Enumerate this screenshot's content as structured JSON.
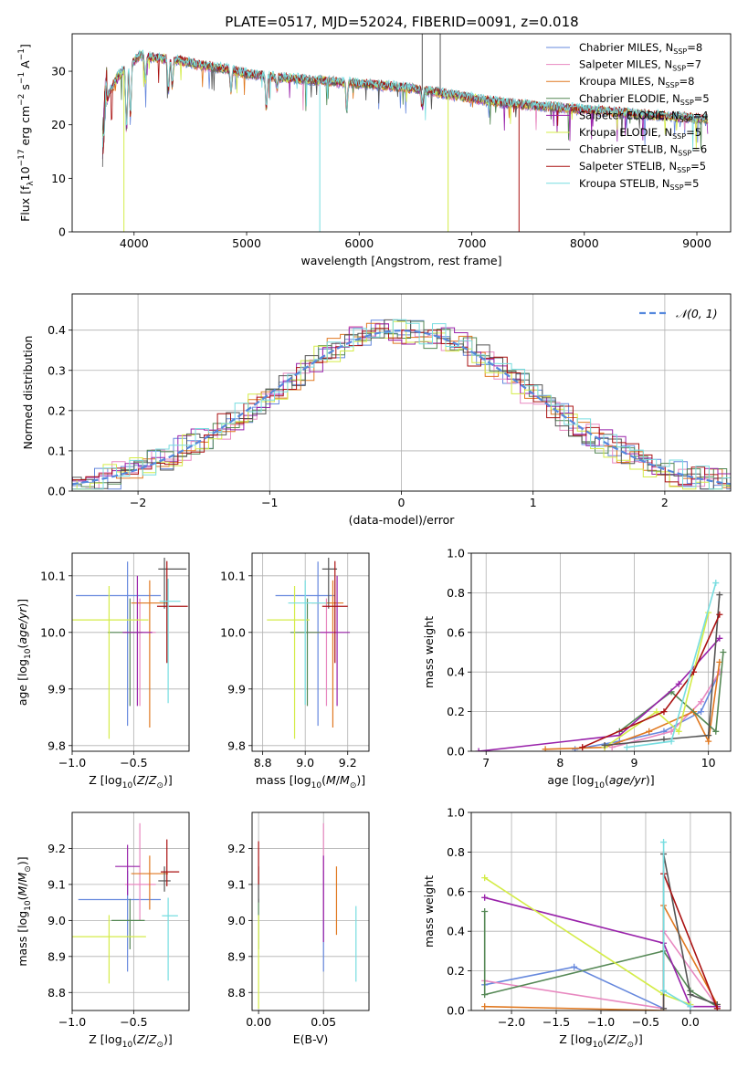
{
  "figure_title": "PLATE=0517, MJD=52024, FIBERID=0091, z=0.018",
  "colors": {
    "chabrier_miles": "#6688dd",
    "salpeter_miles": "#e888c0",
    "kroupa_miles": "#e07820",
    "chabrier_elodie": "#558855",
    "salpeter_elodie": "#9922aa",
    "kroupa_elodie": "#d4ec48",
    "chabrier_stelib": "#555555",
    "salpeter_stelib": "#aa1111",
    "kroupa_stelib": "#77dde0",
    "grid": "#b0b0b0",
    "normal_curve": "#5588dd"
  },
  "series_labels": [
    "Chabrier MILES, N",
    "Salpeter MILES, N",
    "Kroupa MILES, N",
    "Chabrier ELODIE, N",
    "Salpeter ELODIE, N",
    "Kroupa ELODIE, N",
    "Chabrier STELIB, N",
    "Salpeter STELIB, N",
    "Kroupa STELIB, N"
  ],
  "series_subscript": "SSP",
  "series_nssp": [
    8,
    7,
    8,
    5,
    4,
    5,
    6,
    5,
    5
  ],
  "chart_data": [
    {
      "type": "line",
      "panel": "spectrum",
      "xlabel": "wavelength [Angstrom, rest frame]",
      "ylabel": "Flux [f",
      "ylabel_full": "Flux [fλ10⁻¹⁷ erg cm⁻² s⁻¹ A⁻¹]",
      "xlim": [
        3450,
        9300
      ],
      "ylim": [
        0,
        37
      ],
      "xticks": [
        4000,
        5000,
        6000,
        7000,
        8000,
        9000
      ],
      "yticks": [
        0,
        10,
        20,
        30
      ],
      "legend": "top-right",
      "continuum": {
        "x": [
          3720,
          3780,
          3850,
          3950,
          4050,
          4200,
          4400,
          4600,
          4800,
          5000,
          5200,
          5500,
          5800,
          6100,
          6400,
          6700,
          7000,
          7300,
          7600,
          7900,
          8200,
          8500,
          8800,
          9100
        ],
        "y": [
          22,
          26,
          29,
          31,
          33,
          32.5,
          32,
          31,
          30.5,
          29.5,
          29,
          28.5,
          28,
          27.5,
          27,
          26,
          25,
          24,
          23.5,
          23,
          22.5,
          22,
          21.5,
          21
        ]
      },
      "absorption_lines": [
        {
          "x": 3933,
          "depth": 12
        },
        {
          "x": 3968,
          "depth": 10
        },
        {
          "x": 4101,
          "depth": 5
        },
        {
          "x": 4305,
          "depth": 6
        },
        {
          "x": 4340,
          "depth": 5
        },
        {
          "x": 4861,
          "depth": 4
        },
        {
          "x": 5175,
          "depth": 6
        },
        {
          "x": 5270,
          "depth": 2
        },
        {
          "x": 5890,
          "depth": 5
        },
        {
          "x": 6563,
          "depth": 3
        }
      ],
      "spikes": [
        {
          "x": 3910,
          "y": 0,
          "series": "kroupa_elodie"
        },
        {
          "x": 5650,
          "y": 0,
          "series": "kroupa_stelib"
        },
        {
          "x": 6790,
          "y": 0,
          "series": "kroupa_elodie"
        },
        {
          "x": 7420,
          "y": 0,
          "series": "salpeter_stelib"
        },
        {
          "x": 6560,
          "y": 37,
          "series": "chabrier_stelib"
        },
        {
          "x": 6720,
          "y": 37,
          "series": "chabrier_stelib"
        }
      ]
    },
    {
      "type": "histogram",
      "panel": "residuals",
      "xlabel": "(data-model)/error",
      "ylabel": "Normed distribution",
      "xlim": [
        -2.5,
        2.5
      ],
      "ylim": [
        0,
        0.49
      ],
      "xticks": [
        -2,
        -1,
        0,
        1,
        2
      ],
      "yticks": [
        0.0,
        0.1,
        0.2,
        0.3,
        0.4
      ],
      "bin_width": 0.1,
      "legend": "top-right",
      "normal_label": "𝒩(0, 1)",
      "normal_mean": 0,
      "normal_sigma": 1,
      "grid": true
    },
    {
      "type": "scatter",
      "panel": "age_vs_Z",
      "xlabel": "Z [log",
      "ylabel": "age  [log",
      "xlim": [
        -1.0,
        -0.05
      ],
      "ylim": [
        9.79,
        10.14
      ],
      "xticks": [
        -1.0,
        -0.5
      ],
      "yticks": [
        9.8,
        9.9,
        10.0,
        10.1
      ],
      "grid": true,
      "points": [
        {
          "series": "chabrier_miles",
          "x": -0.55,
          "y": 10.065,
          "xerr": [
            0.42,
            0.27
          ],
          "yerr": [
            0.23,
            0.06
          ]
        },
        {
          "series": "salpeter_miles",
          "x": -0.45,
          "y": 10.0,
          "xerr": [
            0.12,
            0.13
          ],
          "yerr": [
            0.13,
            0.06
          ]
        },
        {
          "series": "kroupa_miles",
          "x": -0.37,
          "y": 10.052,
          "xerr": [
            0.15,
            0.15
          ],
          "yerr": [
            0.22,
            0.04
          ]
        },
        {
          "series": "chabrier_elodie",
          "x": -0.53,
          "y": 10.0,
          "xerr": [
            0.18,
            0.1
          ],
          "yerr": [
            0.13,
            0.06
          ]
        },
        {
          "series": "salpeter_elodie",
          "x": -0.47,
          "y": 10.0,
          "xerr": [
            0.12,
            0.12
          ],
          "yerr": [
            0.13,
            0.1
          ]
        },
        {
          "series": "kroupa_elodie",
          "x": -0.7,
          "y": 10.022,
          "xerr": [
            0.3,
            0.32
          ],
          "yerr": [
            0.21,
            0.06
          ]
        },
        {
          "series": "chabrier_stelib",
          "x": -0.25,
          "y": 10.112,
          "xerr": [
            0.05,
            0.18
          ],
          "yerr": [
            0.07,
            0.02
          ]
        },
        {
          "series": "salpeter_stelib",
          "x": -0.23,
          "y": 10.046,
          "xerr": [
            0.08,
            0.17
          ],
          "yerr": [
            0.1,
            0.08
          ]
        },
        {
          "series": "kroupa_stelib",
          "x": -0.22,
          "y": 10.055,
          "xerr": [
            0.07,
            0.1
          ],
          "yerr": [
            0.18,
            0.04
          ]
        }
      ]
    },
    {
      "type": "scatter",
      "panel": "age_vs_mass",
      "xlabel": "mass [log",
      "xlim": [
        8.75,
        9.3
      ],
      "ylim": [
        9.79,
        10.14
      ],
      "xticks": [
        8.8,
        9.0,
        9.2
      ],
      "yticks": [
        9.8,
        9.9,
        10.0,
        10.1
      ],
      "grid": true,
      "points": [
        {
          "series": "chabrier_miles",
          "x": 9.06,
          "y": 10.065,
          "xerr": [
            0.2,
            0.08
          ],
          "yerr": [
            0.23,
            0.06
          ]
        },
        {
          "series": "salpeter_miles",
          "x": 9.1,
          "y": 10.0,
          "xerr": [
            0.1,
            0.05
          ],
          "yerr": [
            0.13,
            0.06
          ]
        },
        {
          "series": "kroupa_miles",
          "x": 9.13,
          "y": 10.052,
          "xerr": [
            0.1,
            0.05
          ],
          "yerr": [
            0.22,
            0.04
          ]
        },
        {
          "series": "chabrier_elodie",
          "x": 9.01,
          "y": 10.0,
          "xerr": [
            0.08,
            0.06
          ],
          "yerr": [
            0.13,
            0.06
          ]
        },
        {
          "series": "salpeter_elodie",
          "x": 9.15,
          "y": 10.0,
          "xerr": [
            0.08,
            0.06
          ],
          "yerr": [
            0.13,
            0.1
          ]
        },
        {
          "series": "kroupa_elodie",
          "x": 8.95,
          "y": 10.022,
          "xerr": [
            0.13,
            0.07
          ],
          "yerr": [
            0.21,
            0.06
          ]
        },
        {
          "series": "chabrier_stelib",
          "x": 9.11,
          "y": 10.112,
          "xerr": [
            0.03,
            0.04
          ],
          "yerr": [
            0.07,
            0.02
          ]
        },
        {
          "series": "salpeter_stelib",
          "x": 9.14,
          "y": 10.046,
          "xerr": [
            0.06,
            0.06
          ],
          "yerr": [
            0.1,
            0.08
          ]
        },
        {
          "series": "kroupa_stelib",
          "x": 9.0,
          "y": 10.052,
          "xerr": [
            0.08,
            0.1
          ],
          "yerr": [
            0.18,
            0.04
          ]
        }
      ]
    },
    {
      "type": "line",
      "panel": "mass_weight_vs_age",
      "xlabel": "age  [log",
      "ylabel": "mass weight",
      "xlim": [
        6.8,
        10.3
      ],
      "ylim": [
        0.0,
        1.0
      ],
      "xticks": [
        7,
        8,
        9,
        10
      ],
      "yticks": [
        0.0,
        0.2,
        0.4,
        0.6,
        0.8,
        1.0
      ],
      "grid": true,
      "series": [
        {
          "series": "chabrier_miles",
          "x": [
            8.2,
            8.8,
            9.4,
            9.9,
            10.15
          ],
          "y": [
            0.01,
            0.05,
            0.1,
            0.2,
            0.4
          ]
        },
        {
          "series": "salpeter_miles",
          "x": [
            8.7,
            9.5,
            9.9,
            10.15
          ],
          "y": [
            0.02,
            0.1,
            0.25,
            0.4
          ]
        },
        {
          "series": "kroupa_miles",
          "x": [
            7.8,
            8.6,
            9.2,
            9.8,
            10.0,
            10.15
          ],
          "y": [
            0.01,
            0.02,
            0.1,
            0.2,
            0.05,
            0.45
          ]
        },
        {
          "series": "chabrier_elodie",
          "x": [
            8.8,
            9.5,
            10.1,
            10.2
          ],
          "y": [
            0.1,
            0.3,
            0.1,
            0.5
          ]
        },
        {
          "series": "salpeter_elodie",
          "x": [
            6.9,
            8.8,
            9.6,
            10.15
          ],
          "y": [
            0.0,
            0.08,
            0.34,
            0.57
          ]
        },
        {
          "series": "kroupa_elodie",
          "x": [
            8.6,
            9.3,
            9.6,
            10.0
          ],
          "y": [
            0.02,
            0.2,
            0.1,
            0.7
          ]
        },
        {
          "series": "chabrier_stelib",
          "x": [
            8.6,
            9.4,
            10.0,
            10.15
          ],
          "y": [
            0.03,
            0.06,
            0.08,
            0.79
          ]
        },
        {
          "series": "salpeter_stelib",
          "x": [
            8.3,
            9.4,
            9.8,
            10.15
          ],
          "y": [
            0.02,
            0.2,
            0.4,
            0.69
          ]
        },
        {
          "series": "kroupa_stelib",
          "x": [
            8.9,
            9.5,
            10.1
          ],
          "y": [
            0.02,
            0.05,
            0.85
          ]
        }
      ]
    },
    {
      "type": "scatter",
      "panel": "mass_vs_Z",
      "xlabel": "Z [log",
      "ylabel": "mass [log",
      "xlim": [
        -1.0,
        -0.05
      ],
      "ylim": [
        8.75,
        9.3
      ],
      "xticks": [
        -1.0,
        -0.5
      ],
      "yticks": [
        8.8,
        8.9,
        9.0,
        9.1,
        9.2
      ],
      "grid": true,
      "points": [
        {
          "series": "chabrier_miles",
          "x": -0.55,
          "y": 9.058,
          "xerr": [
            0.4,
            0.27
          ],
          "yerr": [
            0.2,
            0.08
          ]
        },
        {
          "series": "salpeter_miles",
          "x": -0.45,
          "y": 9.1,
          "xerr": [
            0.12,
            0.13
          ],
          "yerr": [
            0.1,
            0.17
          ]
        },
        {
          "series": "kroupa_miles",
          "x": -0.37,
          "y": 9.13,
          "xerr": [
            0.15,
            0.15
          ],
          "yerr": [
            0.1,
            0.05
          ]
        },
        {
          "series": "chabrier_elodie",
          "x": -0.53,
          "y": 9.0,
          "xerr": [
            0.15,
            0.12
          ],
          "yerr": [
            0.08,
            0.06
          ]
        },
        {
          "series": "salpeter_elodie",
          "x": -0.55,
          "y": 9.15,
          "xerr": [
            0.1,
            0.1
          ],
          "yerr": [
            0.08,
            0.06
          ]
        },
        {
          "series": "kroupa_elodie",
          "x": -0.7,
          "y": 8.955,
          "xerr": [
            0.3,
            0.3
          ],
          "yerr": [
            0.13,
            0.06
          ]
        },
        {
          "series": "chabrier_stelib",
          "x": -0.25,
          "y": 9.11,
          "xerr": [
            0.05,
            0.05
          ],
          "yerr": [
            0.03,
            0.04
          ]
        },
        {
          "series": "salpeter_stelib",
          "x": -0.23,
          "y": 9.135,
          "xerr": [
            0.05,
            0.1
          ],
          "yerr": [
            0.04,
            0.09
          ]
        },
        {
          "series": "kroupa_stelib",
          "x": -0.22,
          "y": 9.013,
          "xerr": [
            0.05,
            0.08
          ],
          "yerr": [
            0.18,
            0.05
          ]
        }
      ]
    },
    {
      "type": "scatter",
      "panel": "mass_vs_ebv",
      "xlabel": "E(B-V)",
      "xlim": [
        -0.005,
        0.085
      ],
      "ylim": [
        8.75,
        9.3
      ],
      "xticks": [
        0.0,
        0.05
      ],
      "xtick_labels": [
        "0.00",
        "0.05"
      ],
      "yticks": [
        8.8,
        8.9,
        9.0,
        9.1,
        9.2
      ],
      "grid": true,
      "points": [
        {
          "series": "chabrier_miles",
          "x": 0.05,
          "y": 9.058,
          "xerr": [
            0,
            0
          ],
          "yerr": [
            0.2,
            0.08
          ]
        },
        {
          "series": "salpeter_miles",
          "x": 0.05,
          "y": 9.1,
          "xerr": [
            0,
            0
          ],
          "yerr": [
            0.1,
            0.17
          ]
        },
        {
          "series": "kroupa_miles",
          "x": 0.06,
          "y": 9.06,
          "xerr": [
            0,
            0
          ],
          "yerr": [
            0.1,
            0.09
          ]
        },
        {
          "series": "chabrier_elodie",
          "x": 0.0,
          "y": 9.0,
          "xerr": [
            0,
            0
          ],
          "yerr": [
            0.08,
            0.06
          ]
        },
        {
          "series": "salpeter_elodie",
          "x": 0.05,
          "y": 9.08,
          "xerr": [
            0,
            0
          ],
          "yerr": [
            0.14,
            0.1
          ]
        },
        {
          "series": "kroupa_elodie",
          "x": 0.0,
          "y": 8.955,
          "xerr": [
            0,
            0
          ],
          "yerr": [
            0.2,
            0.06
          ]
        },
        {
          "series": "chabrier_stelib",
          "x": 0.0,
          "y": 9.11,
          "xerr": [
            0,
            0
          ],
          "yerr": [
            0.06,
            0.04
          ]
        },
        {
          "series": "salpeter_stelib",
          "x": 0.0,
          "y": 9.15,
          "xerr": [
            0,
            0
          ],
          "yerr": [
            0.05,
            0.07
          ]
        },
        {
          "series": "kroupa_stelib",
          "x": 0.075,
          "y": 8.93,
          "xerr": [
            0,
            0
          ],
          "yerr": [
            0.1,
            0.11
          ]
        }
      ]
    },
    {
      "type": "line",
      "panel": "mass_weight_vs_Z",
      "xlabel": "Z [log",
      "ylabel": "mass weight",
      "xlim": [
        -2.45,
        0.45
      ],
      "ylim": [
        0.0,
        1.0
      ],
      "xticks": [
        -2.0,
        -1.5,
        -1.0,
        -0.5,
        0.0
      ],
      "xtick_labels": [
        "−2.0",
        "−1.5",
        "−1.0",
        "−0.5",
        "0.0"
      ],
      "yticks": [
        0.0,
        0.2,
        0.4,
        0.6,
        0.8,
        1.0
      ],
      "grid": true,
      "series": [
        {
          "series": "chabrier_miles",
          "x": [
            -2.3,
            -1.3,
            -0.3,
            -0.3
          ],
          "y": [
            0.13,
            0.22,
            0.01,
            0.4
          ]
        },
        {
          "series": "salpeter_miles",
          "x": [
            -2.3,
            -0.3,
            -0.3,
            0.3
          ],
          "y": [
            0.15,
            0.01,
            0.4,
            0.02
          ]
        },
        {
          "series": "kroupa_miles",
          "x": [
            -2.3,
            -0.3,
            -0.3,
            0.3
          ],
          "y": [
            0.02,
            0.0,
            0.53,
            0.03
          ]
        },
        {
          "series": "chabrier_elodie",
          "x": [
            -2.3,
            -2.3,
            -0.3,
            0.0,
            0.3
          ],
          "y": [
            0.5,
            0.08,
            0.3,
            0.1,
            0.02
          ]
        },
        {
          "series": "salpeter_elodie",
          "x": [
            -2.3,
            -0.3,
            0.0,
            0.3
          ],
          "y": [
            0.57,
            0.34,
            0.02,
            0.02
          ]
        },
        {
          "series": "kroupa_elodie",
          "x": [
            -2.3,
            -0.3,
            0.0
          ],
          "y": [
            0.67,
            0.08,
            0.03
          ]
        },
        {
          "series": "chabrier_stelib",
          "x": [
            -0.3,
            -0.3,
            0.0,
            0.3
          ],
          "y": [
            0.01,
            0.79,
            0.08,
            0.03
          ]
        },
        {
          "series": "salpeter_stelib",
          "x": [
            -0.3,
            0.3
          ],
          "y": [
            0.69,
            0.01
          ]
        },
        {
          "series": "kroupa_stelib",
          "x": [
            -0.3,
            -0.3,
            0.0
          ],
          "y": [
            0.85,
            0.1,
            0.02
          ]
        }
      ]
    }
  ]
}
